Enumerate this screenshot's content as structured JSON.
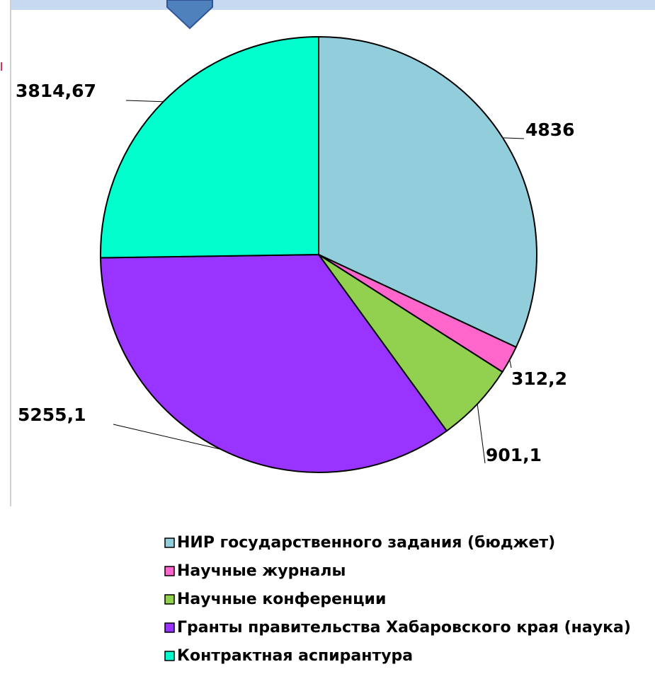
{
  "chart_data": {
    "type": "pie",
    "categories": [
      "НИР государственного задания (бюджет)",
      "Научные журналы",
      "Научные конференции",
      "Гранты правительства Хабаровского края (наука)",
      "Контрактная аспирантура"
    ],
    "values": [
      4836,
      312.2,
      901.1,
      5255.1,
      3814.67
    ],
    "value_labels": [
      "4836",
      "312,2",
      "901,1",
      "5255,1",
      "3814,67"
    ],
    "colors": [
      "#92cddc",
      "#ff66cc",
      "#92d050",
      "#9933ff",
      "#00ffcc"
    ]
  }
}
